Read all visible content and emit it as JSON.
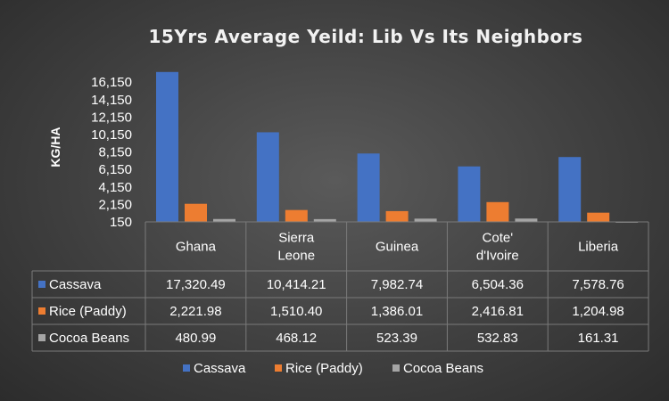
{
  "chart_data": {
    "type": "bar",
    "title": "15Yrs Average Yeild: Lib Vs Its Neighbors",
    "ylabel": "KG/HA",
    "xlabel": "",
    "ylim": [
      150,
      17400
    ],
    "yticks": [
      "150",
      "2,150",
      "4,150",
      "6,150",
      "8,150",
      "10,150",
      "12,150",
      "14,150",
      "16,150"
    ],
    "ytick_values": [
      150,
      2150,
      4150,
      6150,
      8150,
      10150,
      12150,
      14150,
      16150
    ],
    "categories": [
      [
        "Ghana"
      ],
      [
        "Sierra",
        "Leone"
      ],
      [
        "Guinea"
      ],
      [
        "Cote'",
        "d'Ivoire"
      ],
      [
        "Liberia"
      ]
    ],
    "series": [
      {
        "name": "Cassava",
        "color": "#4472c4",
        "values": [
          17320.49,
          10414.21,
          7982.74,
          6504.36,
          7578.76
        ],
        "labels": [
          "17,320.49",
          "10,414.21",
          "7,982.74",
          "6,504.36",
          "7,578.76"
        ]
      },
      {
        "name": "Rice (Paddy)",
        "color": "#ed7d31",
        "values": [
          2221.98,
          1510.4,
          1386.01,
          2416.81,
          1204.98
        ],
        "labels": [
          "2,221.98",
          "1,510.40",
          "1,386.01",
          "2,416.81",
          "1,204.98"
        ]
      },
      {
        "name": "Cocoa Beans",
        "color": "#a5a5a5",
        "values": [
          480.99,
          468.12,
          523.39,
          532.83,
          161.31
        ],
        "labels": [
          "480.99",
          "468.12",
          "523.39",
          "532.83",
          "161.31"
        ]
      }
    ],
    "data_table": true,
    "legend_position": "bottom",
    "grid": false
  }
}
